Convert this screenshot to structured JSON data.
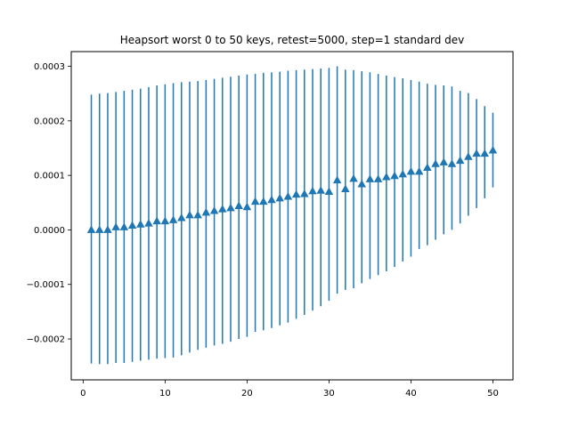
{
  "chart_data": {
    "type": "scatter",
    "title": "Heapsort worst 0 to 50 keys, retest=5000, step=1 standard dev",
    "xlabel": "",
    "ylabel": "",
    "xlim": [
      -1.45,
      52.45
    ],
    "ylim": [
      -0.000275,
      0.000327
    ],
    "xticks": [
      0,
      10,
      20,
      30,
      40,
      50
    ],
    "xtick_labels": [
      "0",
      "10",
      "20",
      "30",
      "40",
      "50"
    ],
    "yticks": [
      -0.0002,
      -0.0001,
      0.0,
      0.0001,
      0.0002,
      0.0003
    ],
    "ytick_labels": [
      "−0.0002",
      "−0.0001",
      "0.0000",
      "0.0001",
      "0.0002",
      "0.0003"
    ],
    "grid": false,
    "legend": "none",
    "series": [
      {
        "color": "#1f77b4",
        "marker": "triangle-up",
        "x": [
          1,
          2,
          3,
          4,
          5,
          6,
          7,
          8,
          9,
          10,
          11,
          12,
          13,
          14,
          15,
          16,
          17,
          18,
          19,
          20,
          21,
          22,
          23,
          24,
          25,
          26,
          27,
          28,
          29,
          30,
          31,
          32,
          33,
          34,
          35,
          36,
          37,
          38,
          39,
          40,
          41,
          42,
          43,
          44,
          45,
          46,
          47,
          48,
          49,
          50
        ],
        "y": [
          0.0,
          0.0,
          0.0,
          5e-06,
          5e-06,
          8e-06,
          1e-05,
          1.2e-05,
          1.6e-05,
          1.6e-05,
          1.8e-05,
          2.2e-05,
          2.7e-05,
          2.7e-05,
          3.2e-05,
          3.5e-05,
          3.8e-05,
          4e-05,
          4.4e-05,
          4.2e-05,
          5.2e-05,
          5.2e-05,
          5.5e-05,
          5.8e-05,
          6.1e-05,
          6.5e-05,
          6.6e-05,
          7.1e-05,
          7.2e-05,
          7e-05,
          9.1e-05,
          7.5e-05,
          9.4e-05,
          8.4e-05,
          9.3e-05,
          9.3e-05,
          9.7e-05,
          9.9e-05,
          0.000102,
          0.000107,
          0.000107,
          0.000114,
          0.000121,
          0.000124,
          0.000121,
          0.000127,
          0.000134,
          0.00014,
          0.00014,
          0.000146
        ],
        "yerr_low": [
          -0.000245,
          -0.000246,
          -0.000246,
          -0.000244,
          -0.000244,
          -0.000242,
          -0.00024,
          -0.000238,
          -0.000236,
          -0.000235,
          -0.000234,
          -0.00023,
          -0.000225,
          -0.00022,
          -0.000216,
          -0.000212,
          -0.000209,
          -0.000205,
          -0.0002,
          -0.000196,
          -0.000187,
          -0.000184,
          -0.00018,
          -0.000175,
          -0.00017,
          -0.000163,
          -0.000156,
          -0.000148,
          -0.00014,
          -0.00013,
          -0.000117,
          -0.00011,
          -0.000107,
          -9.8e-05,
          -9e-05,
          -8.3e-05,
          -7.6e-05,
          -6.8e-05,
          -5.8e-05,
          -4.9e-05,
          -3.5e-05,
          -2.8e-05,
          -1.8e-05,
          -8e-06,
          0.0,
          1.2e-05,
          2.6e-05,
          4e-05,
          5.8e-05,
          7.8e-05
        ],
        "yerr_high": [
          0.000248,
          0.00025,
          0.000251,
          0.000253,
          0.000255,
          0.000257,
          0.000259,
          0.000262,
          0.000265,
          0.000267,
          0.000269,
          0.000271,
          0.000272,
          0.000273,
          0.000275,
          0.000277,
          0.000279,
          0.000281,
          0.000283,
          0.000285,
          0.000286,
          0.000288,
          0.000289,
          0.00029,
          0.000292,
          0.000293,
          0.000294,
          0.000295,
          0.000296,
          0.000297,
          0.0003,
          0.000294,
          0.000293,
          0.000291,
          0.000289,
          0.000286,
          0.000283,
          0.00028,
          0.000278,
          0.000275,
          0.000272,
          0.000268,
          0.000266,
          0.000265,
          0.000263,
          0.000255,
          0.000251,
          0.00024,
          0.000227,
          0.000215
        ]
      }
    ]
  }
}
